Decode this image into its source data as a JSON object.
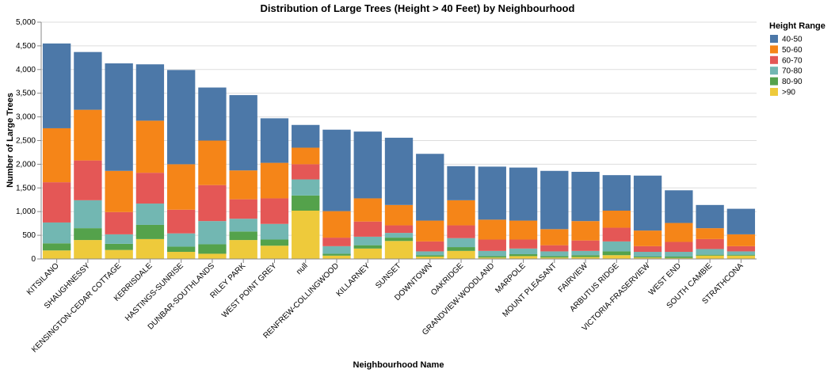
{
  "chart_data": {
    "type": "bar",
    "stacked": true,
    "title": "Distribution of Large Trees (Height > 40 Feet) by Neighbourhood",
    "xlabel": "Neighbourhood Name",
    "ylabel": "Number of Large Trees",
    "ylim": [
      0,
      5000
    ],
    "yticks": [
      0,
      500,
      1000,
      1500,
      2000,
      2500,
      3000,
      3500,
      4000,
      4500,
      5000
    ],
    "ytick_labels": [
      "0",
      "500",
      "1,000",
      "1,500",
      "2,000",
      "2,500",
      "3,000",
      "3,500",
      "4,000",
      "4,500",
      "5,000"
    ],
    "grid": true,
    "legend": {
      "title": "Height Range",
      "placement": "right"
    },
    "categories": [
      "KITSILANO",
      "SHAUGHNESSY",
      "KENSINGTON-CEDAR COTTAGE",
      "KERRISDALE",
      "HASTINGS-SUNRISE",
      "DUNBAR-SOUTHLANDS",
      "RILEY PARK",
      "WEST POINT GREY",
      "null",
      "RENFREW-COLLINGWOOD",
      "KILLARNEY",
      "SUNSET",
      "DOWNTOWN",
      "OAKRIDGE",
      "GRANDVIEW-WOODLAND",
      "MARPOLE",
      "MOUNT PLEASANT",
      "FAIRVIEW",
      "ARBUTUS RIDGE",
      "VICTORIA-FRASERVIEW",
      "WEST END",
      "SOUTH CAMBIE",
      "STRATHCONA"
    ],
    "series": [
      {
        "name": ">90",
        "color": "#eeca3b",
        "values": [
          180,
          400,
          190,
          420,
          150,
          110,
          400,
          280,
          1020,
          70,
          220,
          380,
          50,
          170,
          30,
          60,
          30,
          40,
          80,
          30,
          20,
          70,
          70
        ]
      },
      {
        "name": "80-90",
        "color": "#54a24b",
        "values": [
          150,
          250,
          130,
          300,
          110,
          200,
          180,
          130,
          320,
          40,
          70,
          70,
          30,
          80,
          30,
          40,
          30,
          40,
          80,
          20,
          30,
          20,
          20
        ]
      },
      {
        "name": "70-80",
        "color": "#72b7b2",
        "values": [
          440,
          590,
          200,
          450,
          280,
          490,
          270,
          330,
          340,
          160,
          180,
          100,
          80,
          190,
          110,
          120,
          100,
          90,
          210,
          100,
          100,
          120,
          70
        ]
      },
      {
        "name": "60-70",
        "color": "#e45756",
        "values": [
          850,
          840,
          470,
          650,
          500,
          760,
          410,
          540,
          320,
          180,
          320,
          160,
          210,
          270,
          240,
          190,
          130,
          220,
          290,
          120,
          210,
          210,
          110
        ]
      },
      {
        "name": "50-60",
        "color": "#f58518",
        "values": [
          1140,
          1070,
          870,
          1100,
          960,
          940,
          610,
          750,
          350,
          560,
          490,
          430,
          440,
          530,
          420,
          400,
          340,
          410,
          360,
          330,
          400,
          230,
          250
        ]
      },
      {
        "name": "40-50",
        "color": "#4c78a8",
        "values": [
          1790,
          1220,
          2270,
          1190,
          1990,
          1120,
          1590,
          940,
          480,
          1720,
          1410,
          1420,
          1410,
          720,
          1120,
          1120,
          1230,
          1040,
          750,
          1160,
          690,
          490,
          540
        ]
      }
    ],
    "legend_order": [
      "40-50",
      "50-60",
      "60-70",
      "70-80",
      "80-90",
      ">90"
    ]
  }
}
